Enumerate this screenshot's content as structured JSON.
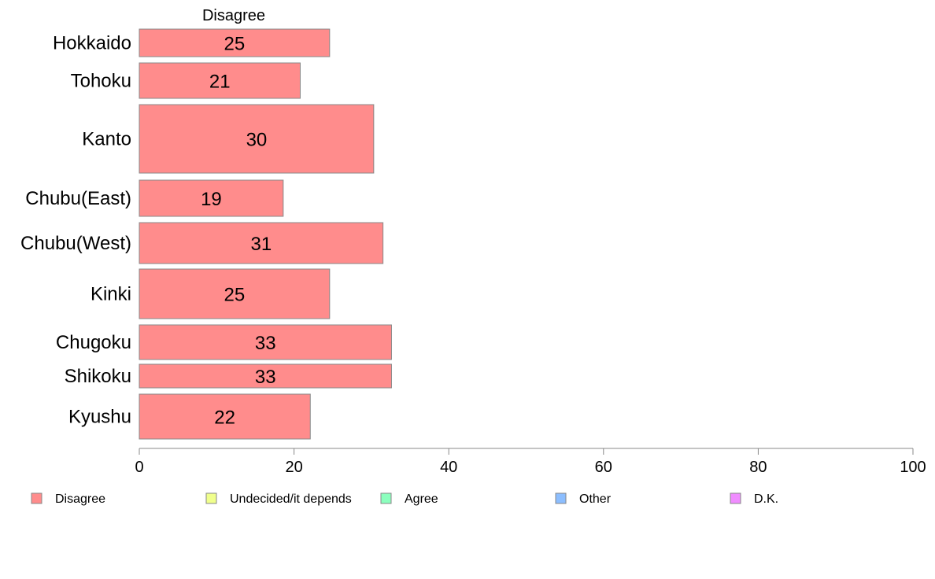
{
  "chart_data": {
    "type": "bar",
    "orientation": "horizontal",
    "column_title": "Disagree",
    "categories": [
      "Hokkaido",
      "Tohoku",
      "Kanto",
      "Chubu(East)",
      "Chubu(West)",
      "Kinki",
      "Chugoku",
      "Shikoku",
      "Kyushu"
    ],
    "series": [
      {
        "name": "Disagree",
        "values": [
          24.6,
          20.8,
          30.3,
          18.6,
          31.5,
          24.6,
          32.6,
          32.6,
          22.1
        ],
        "labels": [
          "25",
          "21",
          "30",
          "19",
          "31",
          "25",
          "33",
          "33",
          "22"
        ]
      }
    ],
    "xlim": [
      0,
      100
    ],
    "xticks": [
      "0",
      "20",
      "40",
      "60",
      "80",
      "100"
    ],
    "grid": false,
    "legend": {
      "placement": "bottom",
      "items": [
        {
          "label": "Disagree",
          "color": "#ff8c8c"
        },
        {
          "label": "Undecided/it depends",
          "color": "#f0ff8c"
        },
        {
          "label": "Agree",
          "color": "#8cffbe"
        },
        {
          "label": "Other",
          "color": "#8cbeff"
        },
        {
          "label": "D.K.",
          "color": "#f08cff"
        }
      ]
    },
    "colors": {
      "bar_fill": "#ff8c8c",
      "bar_stroke": "#888888",
      "axis": "#888888"
    }
  }
}
